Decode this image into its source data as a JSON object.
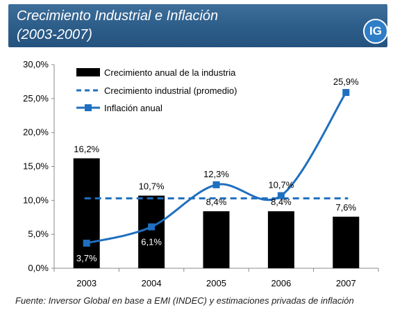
{
  "header": {
    "title_line1": "Crecimiento Industrial e Inflación",
    "title_line2": "(2003-2007)",
    "badge": "IG",
    "colors": {
      "header_bg": "#2c5c88",
      "badge_bg": "#2f7dc6"
    }
  },
  "source": "Fuente: Inversor Global en base a EMI (INDEC) y estimaciones privadas de inflación",
  "chart_data": {
    "type": "bar",
    "categories": [
      "2003",
      "2004",
      "2005",
      "2006",
      "2007"
    ],
    "ylim": [
      0,
      30
    ],
    "yticks": [
      "0,0%",
      "5,0%",
      "10,0%",
      "15,0%",
      "20,0%",
      "25,0%",
      "30,0%"
    ],
    "legend_position": "top-left",
    "series": [
      {
        "name": "Crecimiento anual de la industria",
        "kind": "bar",
        "color": "#000000",
        "values": [
          16.2,
          10.7,
          8.4,
          8.4,
          7.6
        ],
        "labels": [
          "16,2%",
          "10,7%",
          "8,4%",
          "8,4%",
          "7,6%"
        ]
      },
      {
        "name": "Crecimiento industrial (promedio)",
        "kind": "dashed-line",
        "color": "#1f6fbf",
        "values": [
          10.3,
          10.3,
          10.3,
          10.3,
          10.3
        ]
      },
      {
        "name": "Inflación anual",
        "kind": "line",
        "color": "#1f6fbf",
        "values": [
          3.7,
          6.1,
          12.3,
          10.7,
          25.9
        ],
        "labels": [
          "3,7%",
          "6,1%",
          "12,3%",
          "10,7%",
          "25,9%"
        ]
      }
    ]
  }
}
